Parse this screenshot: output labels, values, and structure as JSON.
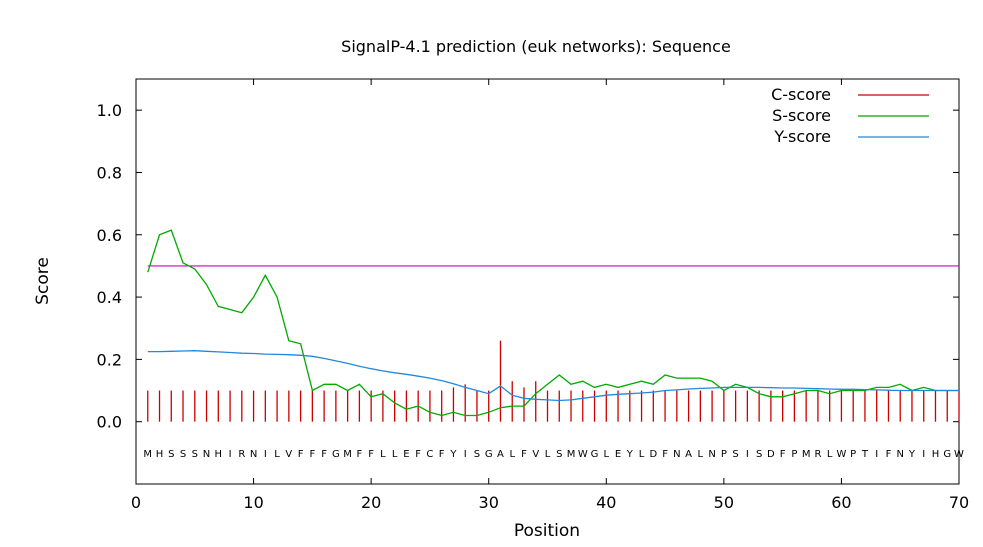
{
  "chart_data": {
    "type": "line",
    "title": "SignalP-4.1 prediction (euk networks): Sequence",
    "xlabel": "Position",
    "ylabel": "Score",
    "xlim": [
      0,
      70
    ],
    "ylim": [
      -0.2,
      1.1
    ],
    "x_ticks": [
      "0",
      "10",
      "20",
      "30",
      "40",
      "50",
      "60",
      "70"
    ],
    "y_ticks": [
      "0.0",
      "0.2",
      "0.4",
      "0.6",
      "0.8",
      "1.0"
    ],
    "sequence": "MHSSSNHIRNILVFFFGMFFLLEFCFYISGALFVLSMWGLEYLDFNALNPSISDFPMRLWPTIFNYIHGW",
    "threshold": 0.5,
    "legend_position": "top-right",
    "series": [
      {
        "name": "C-score",
        "color": "#cc0000",
        "style": "impulses",
        "values": [
          0.1,
          0.1,
          0.1,
          0.1,
          0.1,
          0.1,
          0.1,
          0.1,
          0.1,
          0.1,
          0.1,
          0.1,
          0.1,
          0.1,
          0.1,
          0.1,
          0.1,
          0.1,
          0.1,
          0.1,
          0.1,
          0.1,
          0.1,
          0.1,
          0.1,
          0.1,
          0.11,
          0.12,
          0.1,
          0.1,
          0.26,
          0.13,
          0.11,
          0.13,
          0.1,
          0.1,
          0.1,
          0.1,
          0.1,
          0.1,
          0.1,
          0.1,
          0.1,
          0.1,
          0.1,
          0.1,
          0.1,
          0.1,
          0.1,
          0.1,
          0.1,
          0.1,
          0.1,
          0.1,
          0.1,
          0.1,
          0.1,
          0.1,
          0.1,
          0.1,
          0.1,
          0.1,
          0.1,
          0.1,
          0.1,
          0.1,
          0.1,
          0.1,
          0.1,
          0.1
        ]
      },
      {
        "name": "S-score",
        "color": "#00aa00",
        "style": "line",
        "values": [
          0.48,
          0.6,
          0.615,
          0.51,
          0.49,
          0.44,
          0.37,
          0.36,
          0.35,
          0.4,
          0.47,
          0.4,
          0.26,
          0.25,
          0.1,
          0.12,
          0.12,
          0.1,
          0.12,
          0.08,
          0.09,
          0.06,
          0.04,
          0.05,
          0.03,
          0.02,
          0.03,
          0.02,
          0.02,
          0.03,
          0.045,
          0.05,
          0.05,
          0.09,
          0.12,
          0.15,
          0.12,
          0.13,
          0.11,
          0.12,
          0.11,
          0.12,
          0.13,
          0.12,
          0.15,
          0.14,
          0.14,
          0.14,
          0.13,
          0.1,
          0.12,
          0.11,
          0.09,
          0.08,
          0.08,
          0.09,
          0.1,
          0.1,
          0.09,
          0.1,
          0.1,
          0.1,
          0.11,
          0.11,
          0.12,
          0.1,
          0.11,
          0.1,
          0.1,
          0.1
        ]
      },
      {
        "name": "Y-score",
        "color": "#2288dd",
        "style": "line",
        "values": [
          0.225,
          0.225,
          0.226,
          0.227,
          0.228,
          0.226,
          0.224,
          0.222,
          0.22,
          0.219,
          0.217,
          0.216,
          0.215,
          0.213,
          0.21,
          0.203,
          0.195,
          0.187,
          0.178,
          0.17,
          0.163,
          0.157,
          0.152,
          0.146,
          0.14,
          0.132,
          0.122,
          0.11,
          0.1,
          0.09,
          0.115,
          0.085,
          0.075,
          0.072,
          0.07,
          0.068,
          0.07,
          0.075,
          0.08,
          0.085,
          0.088,
          0.09,
          0.092,
          0.095,
          0.1,
          0.102,
          0.105,
          0.107,
          0.108,
          0.11,
          0.11,
          0.11,
          0.11,
          0.109,
          0.108,
          0.108,
          0.107,
          0.106,
          0.105,
          0.104,
          0.104,
          0.103,
          0.102,
          0.101,
          0.1,
          0.1,
          0.1,
          0.1,
          0.1,
          0.1
        ]
      }
    ]
  }
}
